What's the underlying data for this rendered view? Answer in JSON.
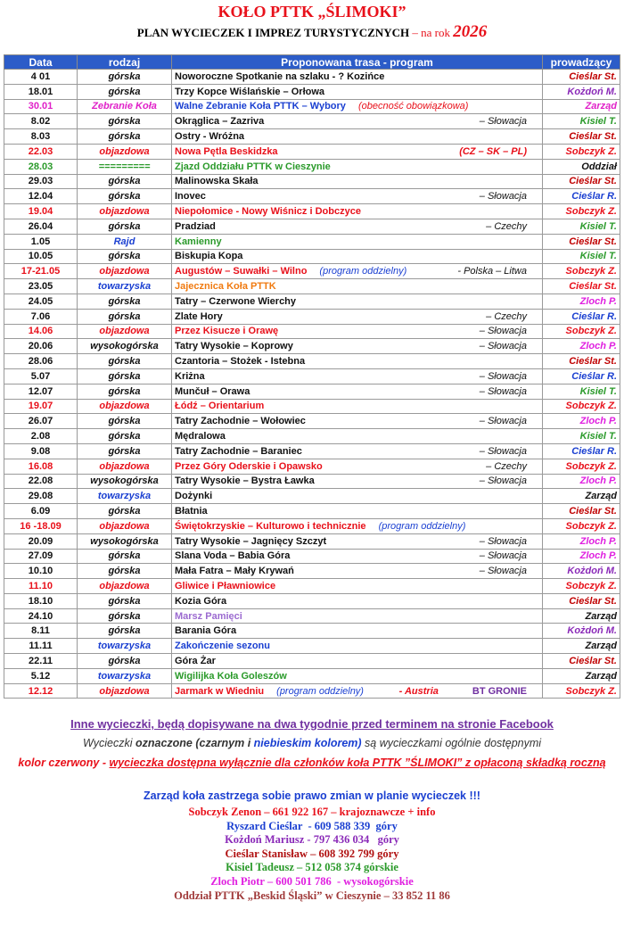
{
  "header": {
    "title": "KOŁO PTTK „ŚLIMOKI”",
    "subtitle": "PLAN WYCIECZEK I IMPREZ TURYSTYCZNYCH",
    "year_label": "– na rok",
    "year": "2026"
  },
  "table": {
    "columns": [
      "Data",
      "rodzaj",
      "Proponowana trasa - program",
      "prowadzący"
    ],
    "rows": [
      {
        "date": "4 01",
        "kind": "górska",
        "route": "Noworoczne Spotkanie na szlaku - ? Kozińce",
        "leader": "Cieślar St."
      },
      {
        "date": "18.01",
        "kind": "górska",
        "route": "Trzy Kopce Wiślańskie – Orłowa",
        "leader": "Kożdoń M."
      },
      {
        "date": "30.01",
        "kind": "Zebranie Koła",
        "route": "Walne Zebranie Koła PTTK – Wybory",
        "note": "(obecność obowiązkowa)",
        "leader": "Zarząd"
      },
      {
        "date": "8.02",
        "kind": "górska",
        "route": "Okrąglica – Zazriva",
        "region": "– Słowacja",
        "leader": "Kisiel T."
      },
      {
        "date": "8.03",
        "kind": "górska",
        "route": "Ostry - Wróżna",
        "leader": "Cieślar St."
      },
      {
        "date": "22.03",
        "kind": "objazdowa",
        "route": "Nowa Pętla Beskidzka",
        "region": "(CZ – SK – PL)",
        "leader": "Sobczyk Z."
      },
      {
        "date": "28.03",
        "kind": "=========",
        "route": "Zjazd Oddziału PTTK w Cieszynie",
        "leader": "Oddział"
      },
      {
        "date": "29.03",
        "kind": "górska",
        "route": "Malinowska Skała",
        "leader": "Cieślar St."
      },
      {
        "date": "12.04",
        "kind": "górska",
        "route": "Inovec",
        "region": "– Słowacja",
        "leader": "Cieślar R."
      },
      {
        "date": "19.04",
        "kind": "objazdowa",
        "route": "Niepołomice - Nowy Wiśnicz i Dobczyce",
        "leader": "Sobczyk Z."
      },
      {
        "date": "26.04",
        "kind": "górska",
        "route": "Pradziad",
        "region": "– Czechy",
        "leader": "Kisiel T."
      },
      {
        "date": "1.05",
        "kind": "Rajd",
        "route": "Kamienny",
        "leader": "Cieślar St."
      },
      {
        "date": "10.05",
        "kind": "górska",
        "route": "Biskupia Kopa",
        "leader": "Kisiel T."
      },
      {
        "date": "17-21.05",
        "kind": "objazdowa",
        "route": "Augustów – Suwałki – Wilno",
        "note": "(program oddzielny)",
        "region": "- Polska – Litwa",
        "leader": "Sobczyk Z."
      },
      {
        "date": "23.05",
        "kind": "towarzyska",
        "route": "Jajecznica Koła PTTK",
        "leader": "Cieślar St."
      },
      {
        "date": "24.05",
        "kind": "górska",
        "route": "Tatry – Czerwone Wierchy",
        "leader": "Zloch P."
      },
      {
        "date": "7.06",
        "kind": "górska",
        "route": "Zlate Hory",
        "region": "– Czechy",
        "leader": "Cieślar R."
      },
      {
        "date": "14.06",
        "kind": "objazdowa",
        "route": "Przez Kisucze i Orawę",
        "region": "– Słowacja",
        "leader": "Sobczyk Z."
      },
      {
        "date": "20.06",
        "kind": "wysokogórska",
        "route": "Tatry Wysokie – Koprowy",
        "region": "– Słowacja",
        "leader": "Zloch P."
      },
      {
        "date": "28.06",
        "kind": "górska",
        "route": "Czantoria – Stożek - Istebna",
        "leader": "Cieślar St."
      },
      {
        "date": "5.07",
        "kind": "górska",
        "route": "Kriżna",
        "region": "– Słowacja",
        "leader": "Cieślar R."
      },
      {
        "date": "12.07",
        "kind": "górska",
        "route": "Munčuł – Orawa",
        "region": "– Słowacja",
        "leader": "Kisiel T."
      },
      {
        "date": "19.07",
        "kind": "objazdowa",
        "route": "Łódź – Orientarium",
        "leader": "Sobczyk Z."
      },
      {
        "date": "26.07",
        "kind": "górska",
        "route": "Tatry Zachodnie – Wołowiec",
        "region": "– Słowacja",
        "leader": "Zloch P."
      },
      {
        "date": "2.08",
        "kind": "górska",
        "route": "Mędralowa",
        "leader": "Kisiel T."
      },
      {
        "date": "9.08",
        "kind": "górska",
        "route": "Tatry Zachodnie – Baraniec",
        "region": "– Słowacja",
        "leader": "Cieślar R."
      },
      {
        "date": "16.08",
        "kind": "objazdowa",
        "route": "Przez Góry Oderskie i Opawsko",
        "region": "– Czechy",
        "leader": "Sobczyk Z."
      },
      {
        "date": "22.08",
        "kind": "wysokogórska",
        "route": "Tatry Wysokie – Bystra Ławka",
        "region": "– Słowacja",
        "leader": "Zloch P."
      },
      {
        "date": "29.08",
        "kind": "towarzyska",
        "route": "Dożynki",
        "leader": "Zarząd"
      },
      {
        "date": "6.09",
        "kind": "górska",
        "route": "Błatnia",
        "leader": "Cieślar St."
      },
      {
        "date": "16 -18.09",
        "kind": "objazdowa",
        "route": "Świętokrzyskie – Kulturowo i technicznie",
        "note": "(program oddzielny)",
        "leader": "Sobczyk Z."
      },
      {
        "date": "20.09",
        "kind": "wysokogórska",
        "route": "Tatry Wysokie – Jagnięcy Szczyt",
        "region": "– Słowacja",
        "leader": "Zloch P."
      },
      {
        "date": "27.09",
        "kind": "górska",
        "route": "Slana Voda – Babia Góra",
        "region": "– Słowacja",
        "leader": "Zloch P."
      },
      {
        "date": "10.10",
        "kind": "górska",
        "route": "Mała Fatra – Mały Krywań",
        "region": "– Słowacja",
        "leader": "Kożdoń M."
      },
      {
        "date": "11.10",
        "kind": "objazdowa",
        "route": "Gliwice i Pławniowice",
        "leader": "Sobczyk Z."
      },
      {
        "date": "18.10",
        "kind": "górska",
        "route": "Kozia Góra",
        "leader": "Cieślar St."
      },
      {
        "date": "24.10",
        "kind": "górska",
        "route": "Marsz Pamięci",
        "leader": "Zarząd"
      },
      {
        "date": "8.11",
        "kind": "górska",
        "route": "Barania Góra",
        "leader": "Kożdoń M."
      },
      {
        "date": "11.11",
        "kind": "towarzyska",
        "route": "Zakończenie sezonu",
        "leader": "Zarząd"
      },
      {
        "date": "22.11",
        "kind": "górska",
        "route": "Góra Żar",
        "leader": "Cieślar St."
      },
      {
        "date": "5.12",
        "kind": "towarzyska",
        "route": "Wigilijka Koła Goleszów",
        "leader": "Zarząd"
      },
      {
        "date": "12.12",
        "kind": "objazdowa",
        "route": "Jarmark w Wiedniu",
        "note": "(program oddzielny)",
        "region": "- Austria",
        "org": "BT GRONIE",
        "leader": "Sobczyk Z."
      }
    ]
  },
  "notes": {
    "facebook": "Inne wycieczki, będą dopisywane na dwa tygodnie przed terminem na stronie Facebook",
    "open": [
      "Wycieczki",
      "oznaczone (czarnym i",
      "niebieskim kolorem)",
      "są wycieczkami ogólnie dostępnymi"
    ],
    "members": [
      "kolor czerwony -",
      "wycieczka dostępna wyłącznie dla członków koła PTTK ”ŚLIMOKI” z opłaconą składką roczną"
    ],
    "reserve": "Zarząd koła zastrzega sobie prawo zmian w planie wycieczek !!!"
  },
  "contacts": [
    "Sobczyk Zenon – 661 922 167 – krajoznawcze + info",
    "Ryszard Cieślar  - 609 588 339  góry",
    "Kożdoń Mariusz - 797 436 034   góry",
    "Cieślar Stanisław – 608 392 799 góry",
    "Kisiel Tadeusz – 512 058 374 górskie",
    "Zloch Piotr – 600 501 786  - wysokogórskie",
    "Oddział PTTK „Beskid Śląski” w Cieszynie – 33 852 11 86"
  ]
}
